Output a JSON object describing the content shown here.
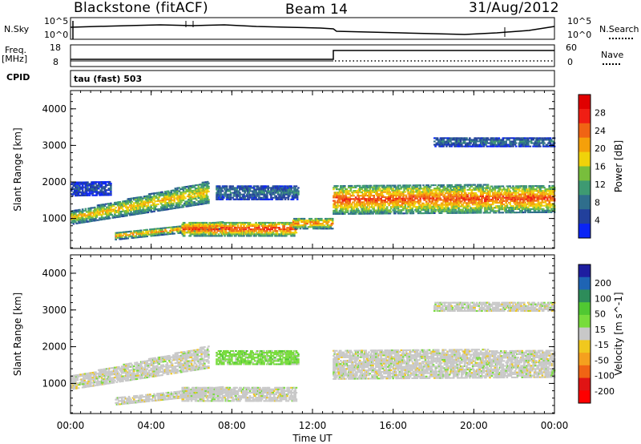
{
  "header": {
    "station": "Blackstone (fitACF)",
    "beam": "Beam 14",
    "date": "31/Aug/2012"
  },
  "top_panels": {
    "nsky_label": "N.Sky",
    "nsky_ticks": [
      "10^5",
      "10^0"
    ],
    "nsearch_label": "N.Search",
    "nsearch_ticks": [
      "10^5",
      "10^0"
    ],
    "freq_label_1": "Freq.",
    "freq_label_2": "[MHz]",
    "freq_ticks": [
      "18",
      "8"
    ],
    "nave_label": "Nave",
    "nave_ticks": [
      "60",
      "0"
    ],
    "cpid_label": "CPID",
    "cpid_value": "tau (fast) 503"
  },
  "colors": {
    "power_scale": [
      "#0a24f5",
      "#22409c",
      "#2f6e8c",
      "#3e9a72",
      "#78be3c",
      "#f0d20a",
      "#f5a00a",
      "#f06414",
      "#f01e14",
      "#e00000"
    ],
    "velocity_scale": [
      "#1e1ea0",
      "#1e64b4",
      "#2d8c5a",
      "#50c832",
      "#78dc3c",
      "#c8c8c8",
      "#f0c81e",
      "#f5a01e",
      "#f06414",
      "#e01414",
      "#ff0000"
    ]
  },
  "chart_data": [
    {
      "type": "heatmap",
      "title": "Power",
      "xlabel": "Time UT",
      "ylabel": "Slant Range [km]",
      "x_ticks": [
        "00:00",
        "04:00",
        "08:00",
        "12:00",
        "16:00",
        "20:00",
        "00:00"
      ],
      "y_ticks": [
        1000,
        2000,
        3000,
        4000
      ],
      "xlim": [
        0,
        24
      ],
      "ylim": [
        180,
        4500
      ],
      "colorbar": {
        "label": "Power [dB]",
        "ticks": [
          4,
          8,
          12,
          16,
          20,
          24,
          28
        ]
      },
      "bands": [
        {
          "t0": 0.0,
          "t1": 6.8,
          "r0a": 820,
          "r0b": 1400,
          "r1a": 1180,
          "r1b": 2000,
          "level": 20
        },
        {
          "t0": 0.0,
          "t1": 2.0,
          "r0a": 1600,
          "r0b": 1620,
          "r1a": 2000,
          "r1b": 2000,
          "level": 6
        },
        {
          "t0": 2.2,
          "t1": 7.5,
          "r0a": 400,
          "r0b": 700,
          "r1a": 600,
          "r1b": 900,
          "level": 22
        },
        {
          "t0": 5.5,
          "t1": 11.2,
          "r0a": 500,
          "r0b": 500,
          "r1a": 900,
          "r1b": 900,
          "level": 27
        },
        {
          "t0": 11.0,
          "t1": 13.0,
          "r0a": 700,
          "r0b": 700,
          "r1a": 1000,
          "r1b": 1000,
          "level": 24
        },
        {
          "t0": 13.0,
          "t1": 24.0,
          "r0a": 1100,
          "r0b": 1150,
          "r1a": 1900,
          "r1b": 1900,
          "level": 26
        },
        {
          "t0": 7.2,
          "t1": 11.3,
          "r0a": 1500,
          "r0b": 1500,
          "r1a": 1900,
          "r1b": 1900,
          "level": 9
        },
        {
          "t0": 18.0,
          "t1": 24.0,
          "r0a": 2950,
          "r0b": 2950,
          "r1a": 3200,
          "r1b": 3200,
          "level": 9
        }
      ]
    },
    {
      "type": "heatmap",
      "title": "Velocity",
      "xlabel": "Time UT",
      "ylabel": "Slant Range [km]",
      "x_ticks": [
        "00:00",
        "04:00",
        "08:00",
        "12:00",
        "16:00",
        "20:00",
        "00:00"
      ],
      "y_ticks": [
        1000,
        2000,
        3000,
        4000
      ],
      "xlim": [
        0,
        24
      ],
      "ylim": [
        180,
        4500
      ],
      "colorbar": {
        "label": "Velocity [m s^-1]",
        "ticks": [
          200,
          100,
          50,
          15,
          -15,
          -50,
          -100,
          -200
        ]
      },
      "bands": [
        {
          "t0": 0.0,
          "t1": 6.8,
          "r0a": 820,
          "r0b": 1400,
          "r1a": 1180,
          "r1b": 2000,
          "level": 0
        },
        {
          "t0": 2.2,
          "t1": 7.5,
          "r0a": 400,
          "r0b": 700,
          "r1a": 600,
          "r1b": 900,
          "level": 0
        },
        {
          "t0": 5.5,
          "t1": 11.2,
          "r0a": 500,
          "r0b": 500,
          "r1a": 900,
          "r1b": 900,
          "level": 0
        },
        {
          "t0": 7.2,
          "t1": 11.3,
          "r0a": 1500,
          "r0b": 1500,
          "r1a": 1900,
          "r1b": 1900,
          "level": 40
        },
        {
          "t0": 13.0,
          "t1": 24.0,
          "r0a": 1100,
          "r0b": 1150,
          "r1a": 1900,
          "r1b": 1900,
          "level": 0
        },
        {
          "t0": 18.0,
          "t1": 24.0,
          "r0a": 2950,
          "r0b": 2950,
          "r1a": 3200,
          "r1b": 3200,
          "level": 0
        }
      ]
    }
  ]
}
